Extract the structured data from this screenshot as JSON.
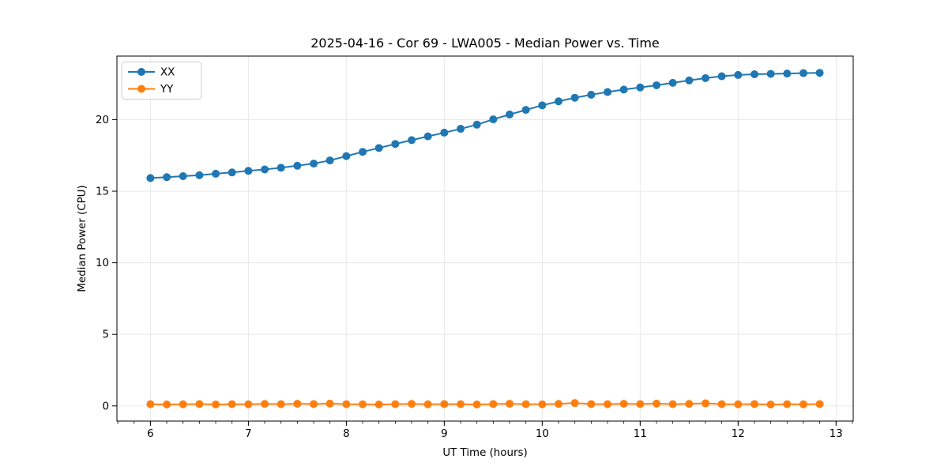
{
  "figure": {
    "background_color": "#ffffff",
    "frame_color": "#000000",
    "grid_color": "#e6e6e6"
  },
  "chart_data": {
    "type": "line",
    "title": "2025-04-16 - Cor 69 - LWA005 - Median Power vs. Time",
    "xlabel": "UT Time (hours)",
    "ylabel": "Median Power (CPU)",
    "xlim": [
      5.658,
      13.175
    ],
    "ylim": [
      -1.06,
      24.44
    ],
    "xticks": [
      6,
      7,
      8,
      9,
      10,
      11,
      12,
      13
    ],
    "yticks": [
      0,
      5,
      10,
      15,
      20
    ],
    "x_minor_step": 0.166667,
    "grid": true,
    "legend_position": "upper-left",
    "x": [
      6.0,
      6.167,
      6.333,
      6.5,
      6.667,
      6.833,
      7.0,
      7.167,
      7.333,
      7.5,
      7.667,
      7.833,
      8.0,
      8.167,
      8.333,
      8.5,
      8.667,
      8.833,
      9.0,
      9.167,
      9.333,
      9.5,
      9.667,
      9.833,
      10.0,
      10.167,
      10.333,
      10.5,
      10.667,
      10.833,
      11.0,
      11.167,
      11.333,
      11.5,
      11.667,
      11.833,
      12.0,
      12.167,
      12.333,
      12.5,
      12.667,
      12.833
    ],
    "series": [
      {
        "name": "XX",
        "color": "#1f77b4",
        "values": [
          15.92,
          15.98,
          16.05,
          16.12,
          16.22,
          16.31,
          16.42,
          16.52,
          16.64,
          16.78,
          16.93,
          17.15,
          17.45,
          17.75,
          18.02,
          18.3,
          18.57,
          18.83,
          19.09,
          19.36,
          19.65,
          20.02,
          20.36,
          20.68,
          21.0,
          21.28,
          21.53,
          21.74,
          21.93,
          22.1,
          22.25,
          22.4,
          22.57,
          22.74,
          22.9,
          23.03,
          23.12,
          23.17,
          23.2,
          23.22,
          23.25,
          23.27
        ]
      },
      {
        "name": "YY",
        "color": "#ff7f0e",
        "values": [
          0.12,
          0.1,
          0.11,
          0.13,
          0.1,
          0.12,
          0.11,
          0.14,
          0.12,
          0.15,
          0.13,
          0.16,
          0.12,
          0.11,
          0.1,
          0.12,
          0.14,
          0.11,
          0.13,
          0.12,
          0.1,
          0.13,
          0.15,
          0.12,
          0.11,
          0.14,
          0.2,
          0.13,
          0.12,
          0.15,
          0.13,
          0.16,
          0.12,
          0.14,
          0.18,
          0.12,
          0.11,
          0.13,
          0.1,
          0.12,
          0.11,
          0.13
        ]
      }
    ]
  }
}
